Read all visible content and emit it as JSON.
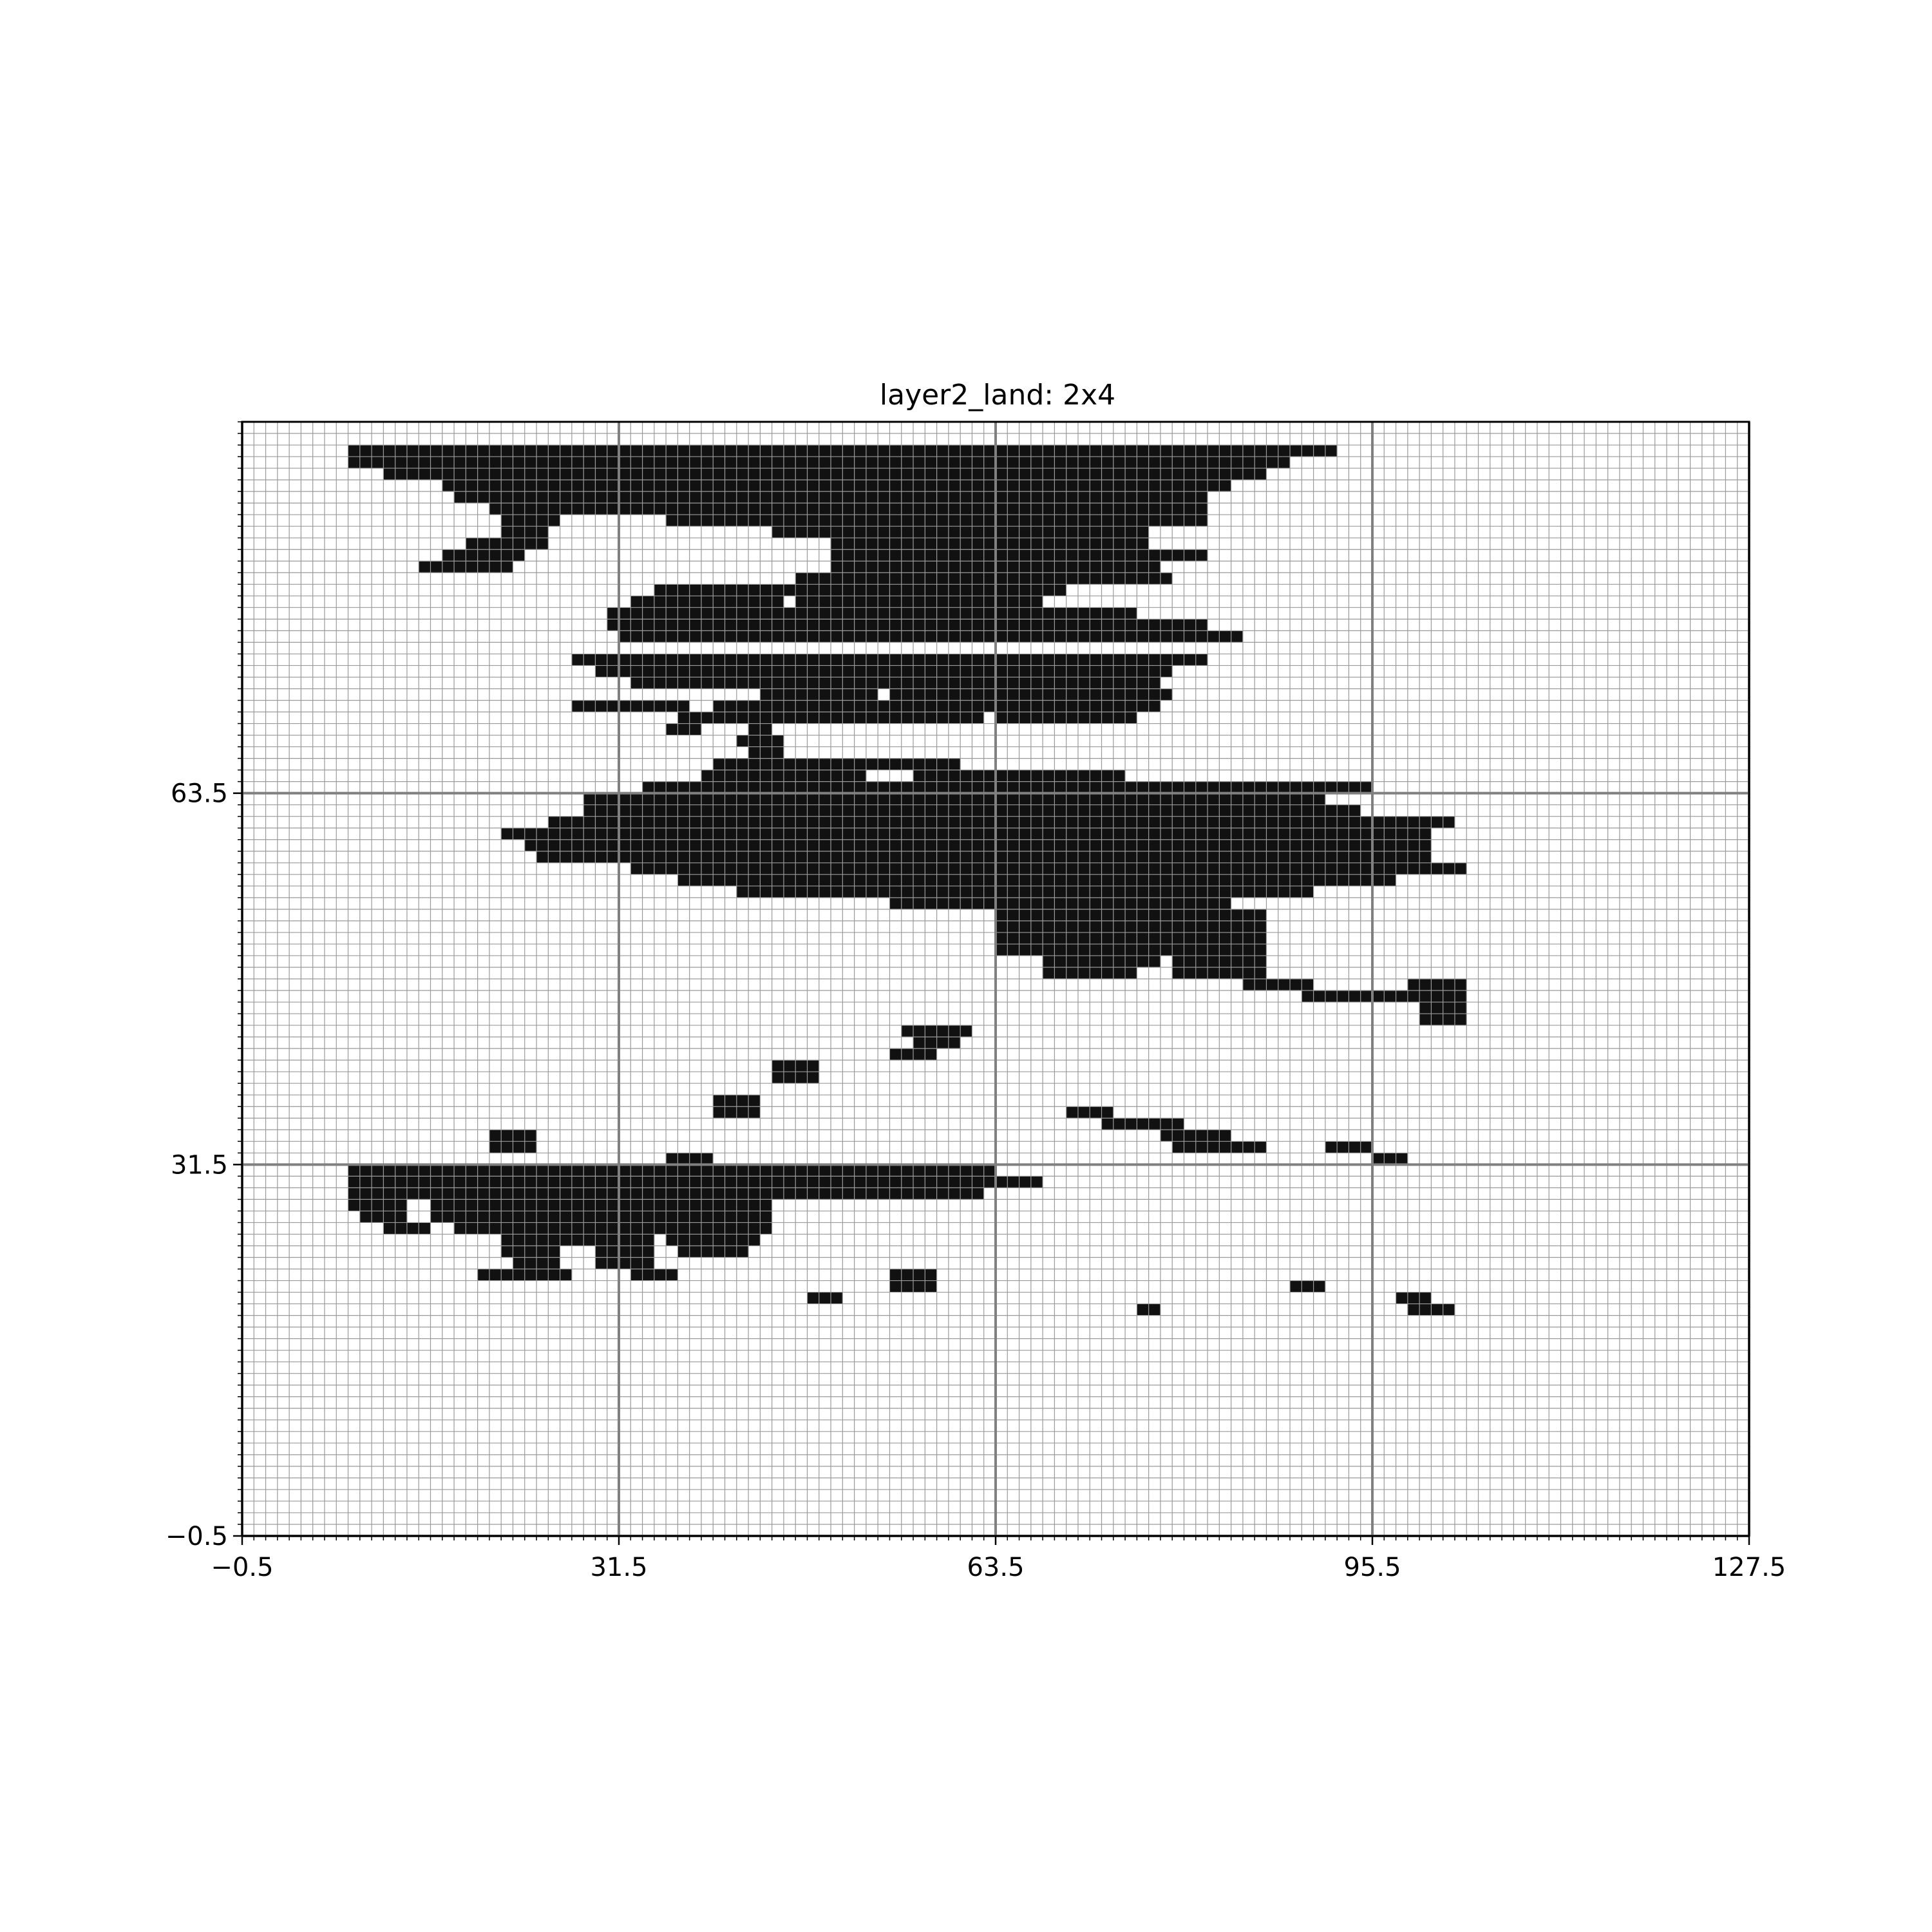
{
  "chart_data": {
    "type": "heatmap",
    "title": "layer2_land: 2x4",
    "xlabel": "",
    "ylabel": "",
    "xlim": [
      -0.5,
      127.5
    ],
    "ylim": [
      -0.5,
      95.5
    ],
    "x_ticks": [
      -0.5,
      31.5,
      63.5,
      95.5,
      127.5
    ],
    "x_tick_labels": [
      "−0.5",
      "31.5",
      "63.5",
      "95.5",
      "127.5"
    ],
    "y_ticks": [
      -0.5,
      31.5,
      63.5
    ],
    "y_tick_labels": [
      "−0.5",
      "31.5",
      "63.5"
    ],
    "major_grid_step": 32,
    "minor_grid_step": 1,
    "grid": true,
    "colors": {
      "land": "#111111",
      "water": "#ffffff",
      "minor_grid": "#9a9a9a",
      "major_grid": "#808080"
    },
    "land_rects": [
      [
        9,
        93,
        84,
        1
      ],
      [
        9,
        92,
        80,
        1
      ],
      [
        12,
        91,
        75,
        1
      ],
      [
        17,
        90,
        67,
        1
      ],
      [
        18,
        89,
        64,
        1
      ],
      [
        21,
        88,
        61,
        1
      ],
      [
        22,
        87,
        5,
        1
      ],
      [
        36,
        87,
        46,
        1
      ],
      [
        22,
        86,
        4,
        1
      ],
      [
        45,
        86,
        32,
        1
      ],
      [
        19,
        85,
        7,
        1
      ],
      [
        50,
        85,
        27,
        1
      ],
      [
        17,
        84,
        7,
        1
      ],
      [
        50,
        84,
        32,
        1
      ],
      [
        15,
        83,
        8,
        1
      ],
      [
        50,
        83,
        28,
        1
      ],
      [
        47,
        82,
        32,
        1
      ],
      [
        35,
        81,
        14,
        1
      ],
      [
        47,
        81,
        23,
        1
      ],
      [
        33,
        80,
        13,
        1
      ],
      [
        47,
        80,
        21,
        1
      ],
      [
        31,
        79,
        45,
        1
      ],
      [
        31,
        78,
        51,
        1
      ],
      [
        32,
        77,
        53,
        1
      ],
      [
        28,
        75,
        54,
        1
      ],
      [
        30,
        74,
        49,
        1
      ],
      [
        33,
        73,
        45,
        1
      ],
      [
        44,
        72,
        10,
        1
      ],
      [
        55,
        72,
        8,
        1
      ],
      [
        63,
        72,
        16,
        1
      ],
      [
        28,
        71,
        10,
        1
      ],
      [
        40,
        71,
        25,
        1
      ],
      [
        63,
        71,
        15,
        1
      ],
      [
        37,
        70,
        26,
        1
      ],
      [
        64,
        70,
        12,
        1
      ],
      [
        36,
        69,
        3,
        1
      ],
      [
        43,
        69,
        2,
        1
      ],
      [
        42,
        68,
        4,
        1
      ],
      [
        43,
        67,
        3,
        1
      ],
      [
        40,
        66,
        21,
        1
      ],
      [
        39,
        65,
        14,
        1
      ],
      [
        57,
        65,
        18,
        1
      ],
      [
        34,
        64,
        62,
        1
      ],
      [
        29,
        63,
        63,
        1
      ],
      [
        29,
        62,
        66,
        1
      ],
      [
        26,
        61,
        77,
        1
      ],
      [
        22,
        60,
        79,
        1
      ],
      [
        24,
        59,
        77,
        1
      ],
      [
        25,
        58,
        76,
        1
      ],
      [
        33,
        57,
        71,
        1
      ],
      [
        37,
        56,
        61,
        1
      ],
      [
        42,
        55,
        49,
        1
      ],
      [
        55,
        54,
        29,
        1
      ],
      [
        64,
        53,
        23,
        1
      ],
      [
        64,
        52,
        23,
        1
      ],
      [
        64,
        51,
        10,
        1
      ],
      [
        73,
        51,
        14,
        1
      ],
      [
        64,
        50,
        10,
        1
      ],
      [
        73,
        50,
        14,
        1
      ],
      [
        68,
        49,
        10,
        1
      ],
      [
        79,
        49,
        8,
        1
      ],
      [
        68,
        48,
        8,
        1
      ],
      [
        79,
        48,
        8,
        1
      ],
      [
        85,
        47,
        6,
        1
      ],
      [
        99,
        47,
        5,
        1
      ],
      [
        90,
        46,
        6,
        1
      ],
      [
        96,
        46,
        8,
        1
      ],
      [
        100,
        45,
        4,
        1
      ],
      [
        100,
        44,
        4,
        1
      ],
      [
        56,
        43,
        6,
        1
      ],
      [
        57,
        42,
        4,
        1
      ],
      [
        55,
        41,
        4,
        1
      ],
      [
        45,
        40,
        4,
        1
      ],
      [
        45,
        39,
        4,
        1
      ],
      [
        40,
        37,
        4,
        1
      ],
      [
        40,
        36,
        4,
        1
      ],
      [
        70,
        36,
        4,
        1
      ],
      [
        73,
        35,
        7,
        1
      ],
      [
        78,
        34,
        6,
        1
      ],
      [
        79,
        33,
        8,
        1
      ],
      [
        21,
        34,
        4,
        1
      ],
      [
        21,
        33,
        4,
        1
      ],
      [
        92,
        33,
        4,
        1
      ],
      [
        36,
        32,
        4,
        1
      ],
      [
        96,
        32,
        3,
        1
      ],
      [
        9,
        31,
        55,
        1
      ],
      [
        9,
        30,
        59,
        1
      ],
      [
        9,
        29,
        54,
        1
      ],
      [
        9,
        28,
        5,
        1
      ],
      [
        16,
        28,
        29,
        1
      ],
      [
        10,
        27,
        4,
        1
      ],
      [
        16,
        27,
        29,
        1
      ],
      [
        12,
        26,
        4,
        1
      ],
      [
        18,
        26,
        3,
        1
      ],
      [
        21,
        26,
        24,
        1
      ],
      [
        22,
        25,
        6,
        1
      ],
      [
        28,
        25,
        7,
        1
      ],
      [
        36,
        25,
        8,
        1
      ],
      [
        22,
        24,
        5,
        1
      ],
      [
        30,
        24,
        5,
        1
      ],
      [
        37,
        24,
        6,
        1
      ],
      [
        23,
        23,
        4,
        1
      ],
      [
        30,
        23,
        5,
        1
      ],
      [
        20,
        22,
        8,
        1
      ],
      [
        33,
        22,
        4,
        1
      ],
      [
        55,
        22,
        4,
        1
      ],
      [
        55,
        21,
        4,
        1
      ],
      [
        89,
        21,
        3,
        1
      ],
      [
        48,
        20,
        3,
        1
      ],
      [
        98,
        20,
        3,
        1
      ],
      [
        76,
        19,
        2,
        1
      ],
      [
        99,
        19,
        4,
        1
      ]
    ]
  }
}
